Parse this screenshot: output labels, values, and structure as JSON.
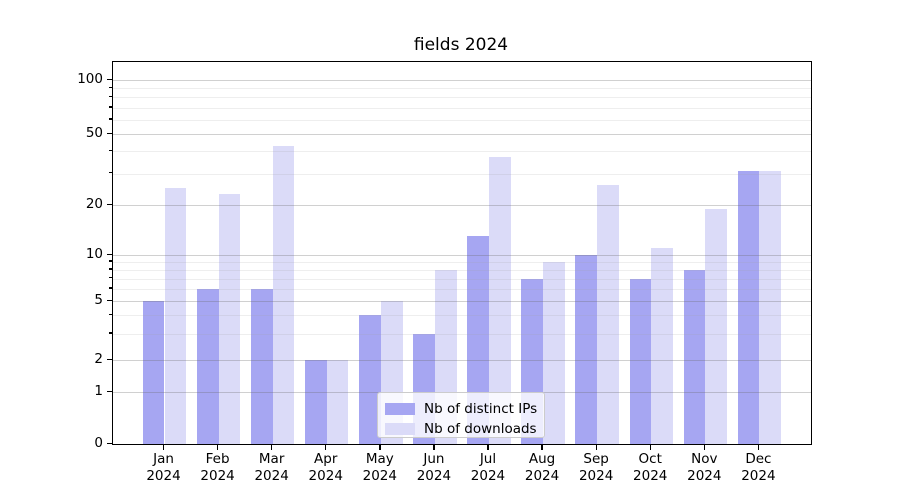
{
  "chart_data": {
    "type": "bar",
    "title": "fields 2024",
    "x_tick_year": "2024",
    "months": [
      "Jan",
      "Feb",
      "Mar",
      "Apr",
      "May",
      "Jun",
      "Jul",
      "Aug",
      "Sep",
      "Oct",
      "Nov",
      "Dec"
    ],
    "series": [
      {
        "name": "Nb of distinct IPs",
        "color": "#a6a6f2",
        "values": [
          5,
          6,
          6,
          2,
          4,
          3,
          13,
          7,
          10,
          7,
          8,
          31
        ]
      },
      {
        "name": "Nb of downloads",
        "color": "#dbdbf8",
        "values": [
          25,
          23,
          43,
          2,
          5,
          8,
          37,
          9,
          26,
          11,
          19,
          31
        ]
      }
    ],
    "yticks": [
      100,
      50,
      20,
      10,
      5,
      2,
      1,
      0
    ],
    "minor_gridlines": [
      3,
      4,
      6,
      7,
      8,
      9,
      30,
      40,
      60,
      70,
      80,
      90
    ],
    "ylim": [
      0,
      126
    ],
    "scale": "symlog",
    "grid": true,
    "legend_position": "lower center"
  }
}
